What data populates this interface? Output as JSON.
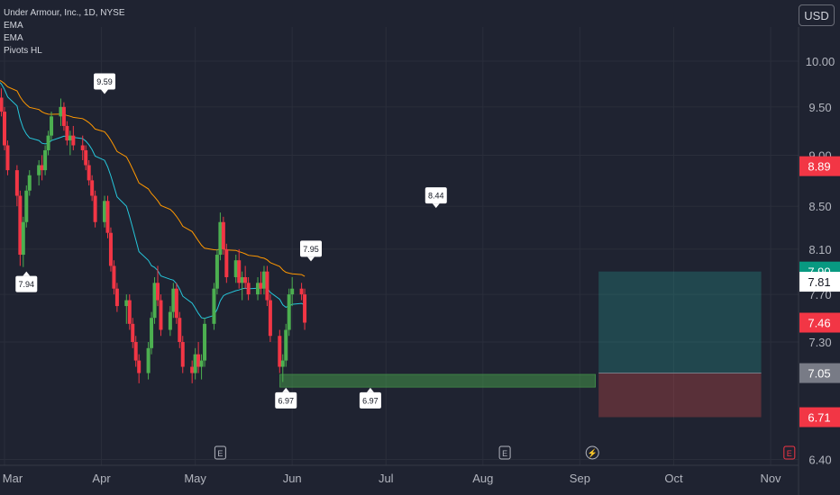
{
  "chart_data": {
    "type": "candlestick",
    "title": "Under Armour, Inc., 1D, NYSE",
    "indicators": [
      "EMA",
      "EMA",
      "Pivots HL"
    ],
    "currency": "USD",
    "y_ticks": [
      "10.00",
      "9.50",
      "9.00",
      "8.50",
      "8.10",
      "7.70",
      "7.30",
      "6.40"
    ],
    "y_axis_scale": "log",
    "x_ticks": [
      "Mar",
      "Apr",
      "May",
      "Jun",
      "Jul",
      "Aug",
      "Sep",
      "Oct",
      "Nov"
    ],
    "price_labels": [
      {
        "value": "8.89",
        "color": "#f23645"
      },
      {
        "value": "7.90",
        "color": "#089981"
      },
      {
        "value": "7.81",
        "color": "#ffffff"
      },
      {
        "value": "7.46",
        "color": "#f23645"
      },
      {
        "value": "7.05",
        "color": "#787b86"
      },
      {
        "value": "6.71",
        "color": "#f23645"
      }
    ],
    "pivots": [
      {
        "label": "7.94",
        "type": "low",
        "date": "Mar 8"
      },
      {
        "label": "9.59",
        "type": "high",
        "date": "Apr 2"
      },
      {
        "label": "7.95",
        "type": "high",
        "date": "Jun 7"
      },
      {
        "label": "6.97",
        "type": "low",
        "date": "May 30"
      },
      {
        "label": "6.97",
        "type": "low",
        "date": "Jun 26"
      },
      {
        "label": "8.44",
        "type": "high",
        "date": "Jul 17"
      }
    ],
    "support_zone": [
      6.94,
      7.04
    ],
    "position": {
      "entry": 7.05,
      "target": 7.9,
      "stop": 6.71
    },
    "earnings_markers": [
      "May 9",
      "Aug 8"
    ],
    "dividend_markers": [
      "Sep 5"
    ],
    "upcoming_earnings_markers": [
      "Nov 7"
    ],
    "candles": [
      [
        9.95,
        10.1,
        9.7,
        9.8
      ],
      [
        9.8,
        9.85,
        9.55,
        9.6
      ],
      [
        9.6,
        9.7,
        9.4,
        9.45
      ],
      [
        9.45,
        9.5,
        9.05,
        9.1
      ],
      [
        9.1,
        9.15,
        8.8,
        8.85
      ],
      [
        8.85,
        8.9,
        8.5,
        8.6
      ],
      [
        8.6,
        8.65,
        7.95,
        8.05
      ],
      [
        8.05,
        8.4,
        7.94,
        8.35
      ],
      [
        8.35,
        8.7,
        8.3,
        8.65
      ],
      [
        8.65,
        8.85,
        8.6,
        8.8
      ],
      [
        8.8,
        8.95,
        8.7,
        8.9
      ],
      [
        8.9,
        9.0,
        8.75,
        8.85
      ],
      [
        8.85,
        9.1,
        8.8,
        9.05
      ],
      [
        9.05,
        9.25,
        9.0,
        9.2
      ],
      [
        9.2,
        9.45,
        9.15,
        9.4
      ],
      [
        9.4,
        9.59,
        9.3,
        9.5
      ],
      [
        9.5,
        9.55,
        9.25,
        9.3
      ],
      [
        9.3,
        9.35,
        9.1,
        9.15
      ],
      [
        9.15,
        9.25,
        9.0,
        9.2
      ],
      [
        9.2,
        9.3,
        9.05,
        9.1
      ],
      [
        9.1,
        9.2,
        8.95,
        9.05
      ],
      [
        9.05,
        9.1,
        8.85,
        8.9
      ],
      [
        8.9,
        8.95,
        8.7,
        8.75
      ],
      [
        8.75,
        8.8,
        8.55,
        8.6
      ],
      [
        8.6,
        8.65,
        8.3,
        8.35
      ],
      [
        8.35,
        8.6,
        8.3,
        8.55
      ],
      [
        8.55,
        8.6,
        8.2,
        8.25
      ],
      [
        8.25,
        8.3,
        7.9,
        7.95
      ],
      [
        7.95,
        8.0,
        7.7,
        7.75
      ],
      [
        7.75,
        7.8,
        7.55,
        7.6
      ],
      [
        7.6,
        7.7,
        7.45,
        7.65
      ],
      [
        7.65,
        7.7,
        7.4,
        7.45
      ],
      [
        7.45,
        7.5,
        7.25,
        7.3
      ],
      [
        7.3,
        7.35,
        7.1,
        7.15
      ],
      [
        7.15,
        7.2,
        6.97,
        7.05
      ],
      [
        7.05,
        7.3,
        7.0,
        7.25
      ],
      [
        7.25,
        7.55,
        7.2,
        7.5
      ],
      [
        7.5,
        7.85,
        7.45,
        7.8
      ],
      [
        7.8,
        7.95,
        7.6,
        7.65
      ],
      [
        7.65,
        7.7,
        7.35,
        7.4
      ],
      [
        7.4,
        7.6,
        7.35,
        7.55
      ],
      [
        7.55,
        7.8,
        7.5,
        7.75
      ],
      [
        7.75,
        7.8,
        7.45,
        7.5
      ],
      [
        7.5,
        7.55,
        7.25,
        7.3
      ],
      [
        7.3,
        7.35,
        7.05,
        7.1
      ],
      [
        7.1,
        7.15,
        6.97,
        7.05
      ],
      [
        7.05,
        7.25,
        7.0,
        7.2
      ],
      [
        7.2,
        7.3,
        7.05,
        7.1
      ],
      [
        7.1,
        7.2,
        7.0,
        7.15
      ],
      [
        7.15,
        7.5,
        7.1,
        7.45
      ],
      [
        7.45,
        7.8,
        7.4,
        7.75
      ],
      [
        7.75,
        8.1,
        7.7,
        8.05
      ],
      [
        8.05,
        8.44,
        8.0,
        8.35
      ],
      [
        8.35,
        8.4,
        8.05,
        8.1
      ],
      [
        8.1,
        8.15,
        7.8,
        7.85
      ],
      [
        7.85,
        8.05,
        7.8,
        8.0
      ],
      [
        8.0,
        8.1,
        7.75,
        7.8
      ],
      [
        7.8,
        7.9,
        7.65,
        7.85
      ],
      [
        7.85,
        7.95,
        7.75,
        7.8
      ],
      [
        7.8,
        7.85,
        7.65,
        7.7
      ],
      [
        7.7,
        7.85,
        7.65,
        7.8
      ],
      [
        7.8,
        7.9,
        7.7,
        7.75
      ],
      [
        7.75,
        7.95,
        7.7,
        7.9
      ],
      [
        7.9,
        7.95,
        7.6,
        7.65
      ],
      [
        7.65,
        7.7,
        7.3,
        7.35
      ],
      [
        7.35,
        7.4,
        7.05,
        7.1
      ],
      [
        7.1,
        7.2,
        6.98,
        7.15
      ],
      [
        7.15,
        7.45,
        7.1,
        7.4
      ],
      [
        7.4,
        7.75,
        7.35,
        7.7
      ],
      [
        7.7,
        7.85,
        7.6,
        7.75
      ],
      [
        7.75,
        7.8,
        7.65,
        7.7
      ],
      [
        7.7,
        7.75,
        7.4,
        7.46
      ]
    ]
  }
}
